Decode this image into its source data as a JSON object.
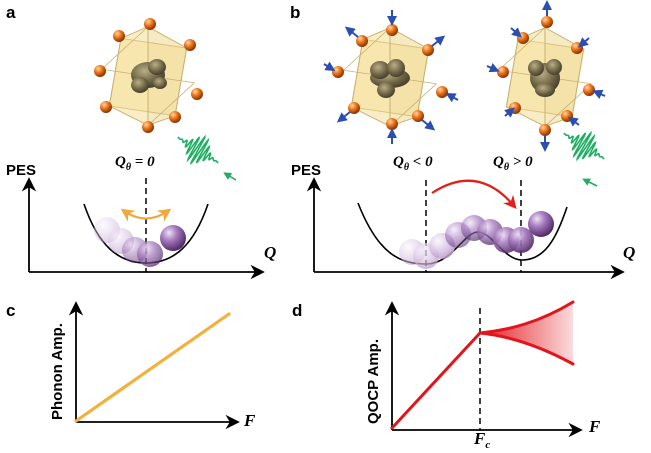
{
  "panels": {
    "a": {
      "label": "a",
      "ylabel": "PES",
      "xlabel": "Q",
      "condition": {
        "var": "Q",
        "sub": "θ",
        "rel": " = 0"
      }
    },
    "b": {
      "label": "b",
      "ylabel": "PES",
      "xlabel": "Q",
      "condition_left": {
        "var": "Q",
        "sub": "θ",
        "rel": " < 0"
      },
      "condition_right": {
        "var": "Q",
        "sub": "θ",
        "rel": " > 0"
      }
    },
    "c": {
      "label": "c",
      "ylabel": "Phonon Amp.",
      "xlabel": "F"
    },
    "d": {
      "label": "d",
      "ylabel": "QOCP Amp.",
      "xlabel": "F",
      "threshold": {
        "var": "F",
        "sub": "c"
      }
    }
  },
  "colors": {
    "oxygen_atom": "#e8761c",
    "octahedron_face": "#f3dc8c",
    "ion_lobe": "#7a6a45",
    "sphere": "#8d5aa8",
    "pulse": "#1fae62",
    "arrow_orange": "#f0a83a",
    "arrow_red": "#e0201c",
    "displacement_arrow": "#2a4fb0",
    "line_c": "#f3b13c",
    "line_d": "#e3141b"
  },
  "icons": [
    "octahedron-icon",
    "displacement-arrow-icon",
    "light-pulse-icon",
    "sphere-icon"
  ]
}
